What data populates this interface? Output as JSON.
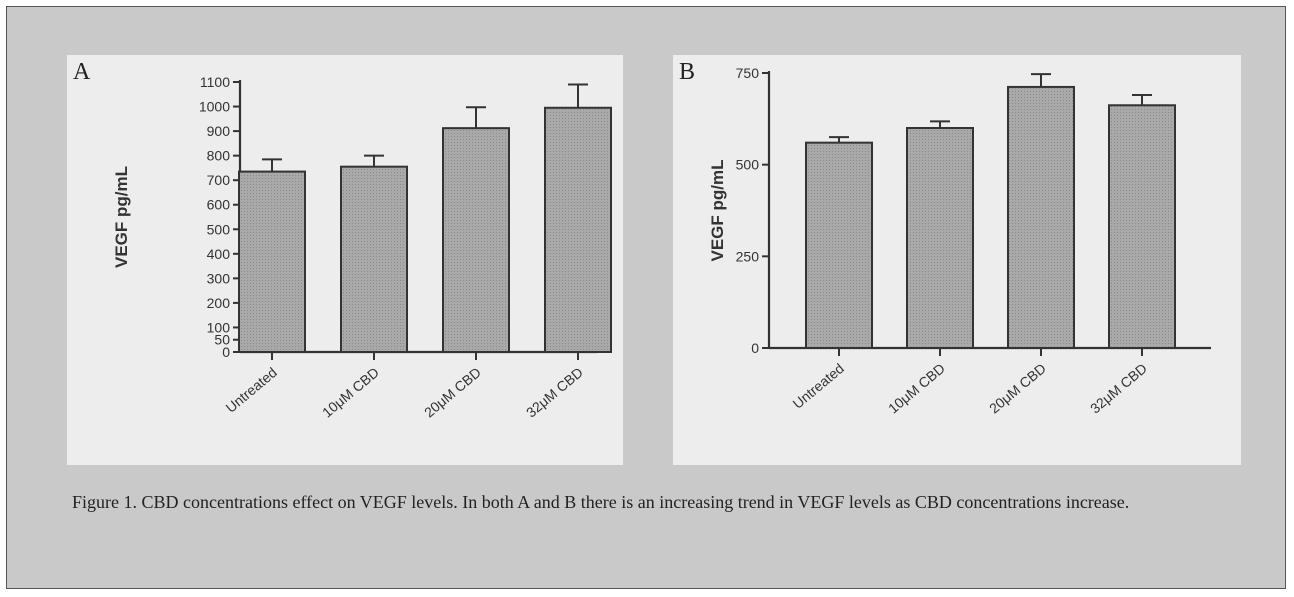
{
  "caption": "Figure 1. CBD concentrations effect on VEGF levels. In both A and B there is an increasing trend in VEGF levels as CBD concentrations increase.",
  "chart_data": [
    {
      "type": "bar",
      "panel": "A",
      "categories": [
        "Untreated",
        "10μM CBD",
        "20μM CBD",
        "32μM CBD"
      ],
      "values": [
        735,
        755,
        912,
        995
      ],
      "errors": [
        50,
        45,
        85,
        95
      ],
      "ylabel": "VEGF pg/mL",
      "xlabel": "",
      "ylim": [
        0,
        1100
      ],
      "yticks": [
        0,
        50,
        100,
        200,
        300,
        400,
        500,
        600,
        700,
        800,
        900,
        1000,
        1100
      ],
      "bar_color": "#a9a9a9",
      "grid": false
    },
    {
      "type": "bar",
      "panel": "B",
      "categories": [
        "Untreated",
        "10μM CBD",
        "20μM CBD",
        "32μM CBD"
      ],
      "values": [
        560,
        600,
        712,
        662
      ],
      "errors": [
        15,
        18,
        35,
        28
      ],
      "ylabel": "VEGF pg/mL",
      "xlabel": "",
      "ylim": [
        0,
        750
      ],
      "yticks": [
        0,
        250,
        500,
        750
      ],
      "bar_color": "#a9a9a9",
      "grid": false
    }
  ]
}
